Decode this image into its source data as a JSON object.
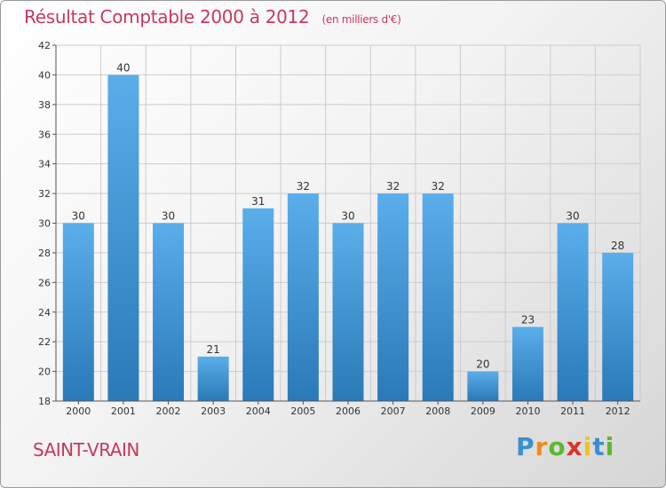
{
  "chart_data": {
    "type": "bar",
    "title": "Résultat Comptable 2000 à 2012",
    "subtitle": "(en milliers d'€)",
    "categories": [
      "2000",
      "2001",
      "2002",
      "2003",
      "2004",
      "2005",
      "2006",
      "2007",
      "2008",
      "2009",
      "2010",
      "2011",
      "2012"
    ],
    "values": [
      30,
      40,
      30,
      21,
      31,
      32,
      30,
      32,
      32,
      20,
      23,
      30,
      28
    ],
    "ylim": [
      18,
      42
    ],
    "yticks": [
      18,
      20,
      22,
      24,
      26,
      28,
      30,
      32,
      34,
      36,
      38,
      40,
      42
    ],
    "xlabel": "",
    "ylabel": "",
    "grid": true,
    "colors": {
      "bar_light": "#5aaeea",
      "bar_dark": "#2a79b8",
      "grid": "#cccccc",
      "axis": "#555555"
    }
  },
  "commune": "SAINT-VRAIN",
  "logo": {
    "letters": [
      "P",
      "r",
      "o",
      "x",
      "i",
      "t",
      "i"
    ],
    "colors": [
      "#3a8fd1",
      "#f08a1c",
      "#5cb82e",
      "#d6342f",
      "#f0c419",
      "#3a8fd1",
      "#5cb82e"
    ]
  }
}
